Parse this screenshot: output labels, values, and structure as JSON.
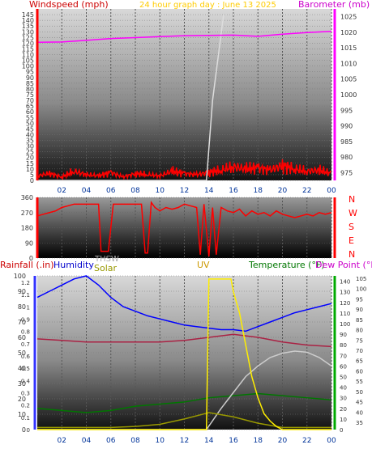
{
  "colors": {
    "wind": "#ff0000",
    "baro": "#ff00ff",
    "title": "#ffcc00",
    "rain": "#3333ff",
    "humidity": "#0000ff",
    "solar": "#999900",
    "thsw": "#aaaaaa",
    "uv": "#cc9900",
    "temp": "#007700",
    "dew": "#cc00cc",
    "gust": "#dddddd"
  },
  "top_labels": {
    "wind": "Windspeed (mph)",
    "title": "24 hour graph day :  June 13 2025",
    "baro": "Barometer (mb)"
  },
  "dir_labels": [
    "N",
    "W",
    "S",
    "E",
    "N"
  ],
  "bottom_labels": {
    "rain": "Rainfall (.in)",
    "humidity": "Humidity",
    "thsw": "THSW",
    "solar": "Solar",
    "uv": "UV",
    "temp": "Temperature (°F)",
    "dew": "Dew Point (°F)"
  },
  "chart_data": [
    {
      "type": "line",
      "title": "24 hour graph day :  June 13 2025",
      "x_ticks": [
        "02",
        "04",
        "06",
        "08",
        "10",
        "12",
        "14",
        "16",
        "18",
        "20",
        "22",
        "00"
      ],
      "ylabel": "Windspeed (mph)",
      "y_ticks": [
        0,
        5,
        10,
        15,
        20,
        25,
        30,
        35,
        40,
        45,
        50,
        55,
        60,
        65,
        70,
        75,
        80,
        85,
        90,
        95,
        100,
        105,
        110,
        115,
        120,
        125,
        130,
        135,
        140,
        145
      ],
      "ylim": [
        0,
        150
      ],
      "y2label": "Barometer (mb)",
      "y2_ticks": [
        975,
        980,
        985,
        990,
        995,
        1000,
        1005,
        1010,
        1015,
        1020,
        1025
      ],
      "y2lim": [
        972.5,
        1027.5
      ],
      "series": [
        {
          "name": "Windspeed (mph)",
          "axis": "left",
          "x": [
            0,
            1,
            2,
            3,
            4,
            5,
            6,
            7,
            8,
            9,
            10,
            11,
            12,
            13,
            14,
            15,
            16,
            17,
            18,
            19,
            20,
            21,
            22,
            23,
            24
          ],
          "values": [
            4,
            6,
            3,
            8,
            5,
            4,
            7,
            3,
            6,
            5,
            4,
            8,
            6,
            5,
            7,
            9,
            12,
            10,
            11,
            9,
            13,
            10,
            8,
            9,
            6
          ]
        },
        {
          "name": "Barometer (mb)",
          "axis": "right",
          "x": [
            0,
            2,
            4,
            6,
            8,
            10,
            12,
            14,
            16,
            18,
            20,
            22,
            24
          ],
          "values": [
            1016.8,
            1016.9,
            1017.4,
            1018.0,
            1018.3,
            1018.6,
            1018.9,
            1019.0,
            1019.1,
            1018.7,
            1019.4,
            1019.9,
            1020.3
          ]
        },
        {
          "name": "Wind gust",
          "axis": "left",
          "x": [
            0,
            13.8,
            14.3,
            15.2
          ],
          "values": [
            0,
            0,
            70,
            145
          ]
        }
      ]
    },
    {
      "type": "line",
      "ylabel": "Wind direction",
      "y_ticks": [
        0,
        90,
        180,
        270,
        360
      ],
      "ylim": [
        0,
        360
      ],
      "series": [
        {
          "name": "Wind direction",
          "x": [
            0,
            0.5,
            1,
            1.5,
            2,
            2.5,
            3,
            3.5,
            4,
            4.5,
            5,
            5.2,
            5.4,
            5.8,
            6.2,
            6.5,
            7,
            7.5,
            8,
            8.5,
            8.8,
            9,
            9.3,
            9.6,
            10,
            10.5,
            11,
            11.5,
            12,
            12.5,
            13,
            13.3,
            13.6,
            14,
            14.3,
            14.6,
            15,
            15.5,
            16,
            16.5,
            17,
            17.5,
            18,
            18.5,
            19,
            19.5,
            20,
            20.5,
            21,
            21.5,
            22,
            22.5,
            23,
            23.5,
            24
          ],
          "values": [
            250,
            260,
            270,
            280,
            300,
            310,
            320,
            320,
            320,
            320,
            320,
            40,
            40,
            40,
            320,
            320,
            320,
            320,
            320,
            320,
            30,
            30,
            330,
            300,
            280,
            300,
            290,
            300,
            320,
            310,
            300,
            20,
            320,
            10,
            300,
            20,
            300,
            280,
            270,
            290,
            250,
            280,
            260,
            270,
            250,
            280,
            260,
            250,
            240,
            250,
            260,
            250,
            270,
            260,
            270
          ]
        }
      ]
    },
    {
      "type": "line",
      "x_ticks": [
        "02",
        "04",
        "06",
        "08",
        "10",
        "12",
        "14",
        "16",
        "18",
        "20",
        "22",
        "00"
      ],
      "ylabel": "Humidity",
      "y_ticks": [
        0,
        10,
        20,
        30,
        40,
        50,
        60,
        70,
        80,
        90,
        100
      ],
      "ylim": [
        0,
        100
      ],
      "y_rain_ticks": [
        0,
        0.1,
        0.2,
        0.3,
        0.4,
        0.5,
        0.6,
        0.7,
        0.8,
        0.9,
        1,
        1.1,
        1.2
      ],
      "y2label": "Temperature (°F)",
      "y2_ticks": [
        0,
        10,
        20,
        30,
        40,
        50,
        60,
        70,
        80,
        90,
        100,
        110,
        120,
        130,
        140
      ],
      "y2lim": [
        0,
        145
      ],
      "y3_ticks": [
        35,
        40,
        45,
        50,
        55,
        60,
        65,
        70,
        75,
        80,
        85,
        90,
        95,
        100,
        105
      ],
      "series": [
        {
          "name": "Humidity",
          "x": [
            0,
            1,
            2,
            3,
            4,
            5,
            6,
            7,
            8,
            9,
            10,
            11,
            12,
            13,
            14,
            15,
            16,
            17,
            18,
            19,
            20,
            21,
            22,
            23,
            24
          ],
          "values": [
            86,
            90,
            94,
            98,
            100,
            94,
            86,
            80,
            77,
            74,
            72,
            70,
            68,
            67,
            66,
            65,
            65,
            64,
            67,
            70,
            73,
            76,
            78,
            80,
            82
          ]
        },
        {
          "name": "Temperature (°F)",
          "x": [
            0,
            2,
            4,
            6,
            8,
            10,
            12,
            14,
            16,
            18,
            20,
            22,
            24
          ],
          "values": [
            20,
            18,
            16,
            18,
            22,
            24,
            26,
            30,
            32,
            34,
            32,
            30,
            28
          ]
        },
        {
          "name": "Dew Point (°F)",
          "x": [
            0,
            2,
            4,
            6,
            8,
            10,
            12,
            14,
            16,
            18,
            20,
            22,
            24
          ],
          "values": [
            59,
            58,
            57,
            57,
            57,
            57,
            58,
            60,
            62,
            60,
            57,
            55,
            54
          ]
        },
        {
          "name": "THSW",
          "x": [
            0,
            13.8,
            15,
            16,
            17,
            18,
            19,
            20,
            21,
            22,
            23,
            24
          ],
          "values": [
            0,
            0,
            20,
            35,
            50,
            60,
            68,
            72,
            74,
            73,
            68,
            60
          ]
        },
        {
          "name": "Solar",
          "x": [
            0,
            2,
            4,
            6,
            8,
            10,
            12,
            14,
            16,
            18,
            20,
            22,
            24
          ],
          "values": [
            2,
            2,
            2,
            2,
            3,
            5,
            10,
            16,
            12,
            6,
            2,
            2,
            2
          ]
        },
        {
          "name": "UV",
          "x": [
            0,
            13.8,
            14,
            15.8,
            16,
            16.5,
            17,
            17.5,
            18,
            18.5,
            19,
            19.5,
            20,
            24
          ],
          "values": [
            0,
            0,
            142,
            142,
            130,
            110,
            80,
            50,
            30,
            15,
            8,
            3,
            0,
            0
          ]
        }
      ]
    }
  ]
}
